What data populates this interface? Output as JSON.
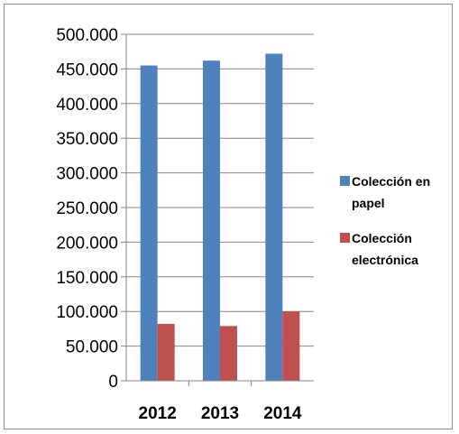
{
  "chart_data": {
    "type": "bar",
    "categories": [
      "2012",
      "2013",
      "2014"
    ],
    "series": [
      {
        "name": "Colección en papel",
        "values": [
          455000,
          462000,
          472000
        ],
        "color": "#4f81bd"
      },
      {
        "name": "Colección electrónica",
        "values": [
          82000,
          79000,
          100000
        ],
        "color": "#c0504d"
      }
    ],
    "ylim": [
      0,
      500000
    ],
    "yticks": [
      {
        "value": 0,
        "label": "0"
      },
      {
        "value": 50000,
        "label": "50.000"
      },
      {
        "value": 100000,
        "label": "100.000"
      },
      {
        "value": 150000,
        "label": "150.000"
      },
      {
        "value": 200000,
        "label": "200.000"
      },
      {
        "value": 250000,
        "label": "250.000"
      },
      {
        "value": 300000,
        "label": "300.000"
      },
      {
        "value": 350000,
        "label": "350.000"
      },
      {
        "value": 400000,
        "label": "400.000"
      },
      {
        "value": 450000,
        "label": "450.000"
      },
      {
        "value": 500000,
        "label": "500.000"
      }
    ],
    "grid": true,
    "legend": {
      "position": "right",
      "entries": [
        {
          "lines": [
            "Colección en",
            "papel"
          ],
          "color": "#4f81bd"
        },
        {
          "lines": [
            "Colección",
            "electrónica"
          ],
          "color": "#c0504d"
        }
      ]
    }
  }
}
